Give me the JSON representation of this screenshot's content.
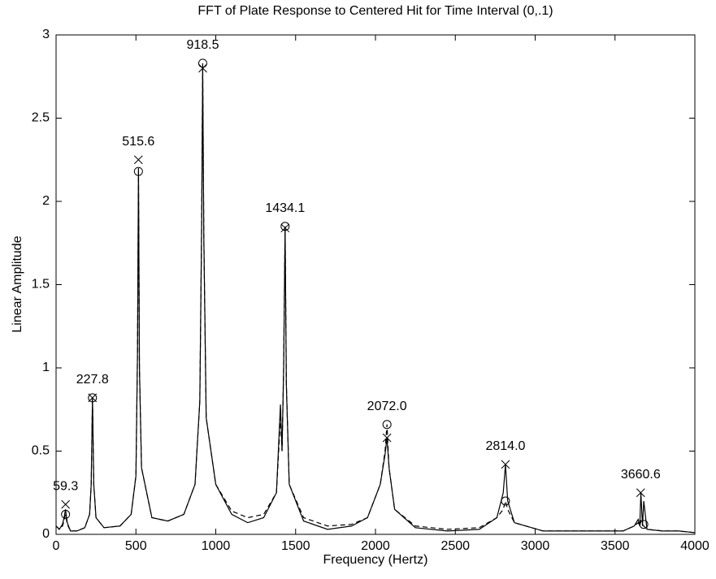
{
  "chart_data": {
    "type": "line",
    "title": "FFT of Plate Response to Centered Hit for Time Interval (0,.1)",
    "x_label": "Frequency (Hertz)",
    "y_label": "Linear Amplitude",
    "xlim": [
      0,
      4000
    ],
    "xticks": [
      0,
      500,
      1000,
      1500,
      2000,
      2500,
      3000,
      3500,
      4000
    ],
    "ylim": [
      0,
      3
    ],
    "yticks": [
      0,
      0.5,
      1,
      1.5,
      2,
      2.5,
      3
    ],
    "grid": false,
    "x": [
      0,
      20,
      40,
      50,
      59,
      70,
      90,
      130,
      180,
      210,
      220,
      228,
      236,
      250,
      300,
      400,
      470,
      500,
      510,
      516,
      522,
      535,
      600,
      700,
      800,
      870,
      900,
      912,
      918,
      925,
      940,
      1000,
      1100,
      1200,
      1300,
      1380,
      1405,
      1415,
      1425,
      1434,
      1442,
      1460,
      1550,
      1700,
      1850,
      1950,
      2030,
      2060,
      2072,
      2085,
      2120,
      2250,
      2450,
      2650,
      2760,
      2800,
      2814,
      2828,
      2870,
      3050,
      3300,
      3550,
      3620,
      3645,
      3655,
      3662,
      3672,
      3680,
      3700,
      3800,
      3900,
      4000
    ],
    "series": [
      {
        "color": "#000000",
        "style": "solid",
        "values": [
          0.05,
          0.03,
          0.06,
          0.1,
          0.15,
          0.07,
          0.02,
          0.02,
          0.04,
          0.12,
          0.3,
          0.82,
          0.3,
          0.1,
          0.04,
          0.05,
          0.12,
          0.35,
          1.1,
          2.2,
          1.0,
          0.4,
          0.1,
          0.08,
          0.12,
          0.3,
          0.8,
          1.9,
          2.8,
          1.8,
          0.7,
          0.3,
          0.12,
          0.07,
          0.1,
          0.25,
          0.78,
          0.5,
          1.0,
          1.84,
          0.9,
          0.3,
          0.08,
          0.03,
          0.05,
          0.1,
          0.3,
          0.48,
          0.58,
          0.4,
          0.15,
          0.04,
          0.02,
          0.03,
          0.1,
          0.25,
          0.42,
          0.2,
          0.07,
          0.02,
          0.02,
          0.02,
          0.05,
          0.09,
          0.05,
          0.25,
          0.05,
          0.2,
          0.03,
          0.02,
          0.02,
          0.01
        ]
      },
      {
        "color": "#000000",
        "style": "dashed",
        "values": [
          0.05,
          0.03,
          0.05,
          0.08,
          0.12,
          0.06,
          0.02,
          0.02,
          0.04,
          0.12,
          0.3,
          0.82,
          0.3,
          0.1,
          0.04,
          0.05,
          0.12,
          0.35,
          1.1,
          2.18,
          1.0,
          0.4,
          0.1,
          0.08,
          0.12,
          0.3,
          0.8,
          1.9,
          2.83,
          1.8,
          0.7,
          0.3,
          0.14,
          0.1,
          0.12,
          0.25,
          0.7,
          0.5,
          1.0,
          1.85,
          0.9,
          0.3,
          0.1,
          0.05,
          0.06,
          0.1,
          0.3,
          0.5,
          0.66,
          0.4,
          0.15,
          0.05,
          0.03,
          0.04,
          0.1,
          0.15,
          0.2,
          0.15,
          0.07,
          0.02,
          0.02,
          0.02,
          0.05,
          0.07,
          0.05,
          0.08,
          0.06,
          0.05,
          0.03,
          0.02,
          0.02,
          0.01
        ]
      }
    ],
    "markers": [
      {
        "symbol": "x",
        "x": [
          59.3,
          227.8,
          515.6,
          918.5,
          1434.1,
          2072.0,
          2814.0,
          3660.6
        ],
        "values": [
          0.18,
          0.82,
          2.25,
          2.8,
          1.84,
          0.58,
          0.42,
          0.25
        ]
      },
      {
        "symbol": "o",
        "x": [
          59.3,
          227.8,
          515.6,
          918.5,
          1434.1,
          2072.0,
          2814.0,
          3680
        ],
        "values": [
          0.12,
          0.82,
          2.18,
          2.83,
          1.85,
          0.66,
          0.2,
          0.06
        ]
      }
    ],
    "peak_labels": [
      "59.3",
      "227.8",
      "515.6",
      "918.5",
      "1434.1",
      "2072.0",
      "2814.0",
      "3660.6"
    ]
  }
}
